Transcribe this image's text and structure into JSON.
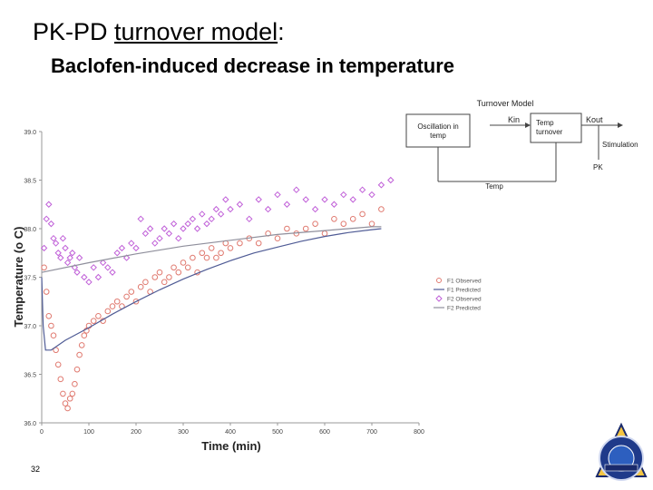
{
  "slide": {
    "title_main": "PK-PD ",
    "title_underlined": "turnover model",
    "title_colon": ":",
    "subtitle": "Baclofen-induced decrease in temperature",
    "page_number": "32"
  },
  "diagram": {
    "title": "Turnover Model",
    "oscillation_label_1": "Oscillation in",
    "oscillation_label_2": "temp",
    "kin": "Kin",
    "kout": "Kout",
    "turnover_label_1": "Temp",
    "turnover_label_2": "turnover",
    "stimulation": "Stimulation",
    "pk": "PK",
    "temp": "Temp"
  },
  "chart_data": {
    "type": "scatter",
    "xlabel": "Time (min)",
    "ylabel": "Temperature (o C)",
    "xlim": [
      0,
      800
    ],
    "ylim": [
      36.0,
      39.0
    ],
    "xticks": [
      "0",
      "100",
      "200",
      "300",
      "400",
      "500",
      "600",
      "700",
      "800"
    ],
    "yticks": [
      "36.0",
      "36.5",
      "37.0",
      "37.5",
      "38.0",
      "38.5",
      "39.0"
    ],
    "grid": false,
    "legend_placement": "right",
    "colors": {
      "f1": "#e07a70",
      "f2": "#c060d8",
      "f1_line": "#4f5b95",
      "f2_line": "#8f8f9c"
    },
    "series": [
      {
        "name": "F1 Observed",
        "kind": "points",
        "x": [
          5,
          10,
          15,
          20,
          25,
          30,
          35,
          40,
          45,
          50,
          55,
          60,
          65,
          70,
          75,
          80,
          85,
          90,
          95,
          100,
          110,
          120,
          130,
          140,
          150,
          160,
          170,
          180,
          190,
          200,
          210,
          220,
          230,
          240,
          250,
          260,
          270,
          280,
          290,
          300,
          310,
          320,
          330,
          340,
          350,
          360,
          370,
          380,
          390,
          400,
          420,
          440,
          460,
          480,
          500,
          520,
          540,
          560,
          580,
          600,
          620,
          640,
          660,
          680,
          700,
          720
        ],
        "y": [
          37.6,
          37.35,
          37.1,
          37.0,
          36.9,
          36.75,
          36.6,
          36.45,
          36.3,
          36.2,
          36.15,
          36.25,
          36.3,
          36.4,
          36.55,
          36.7,
          36.8,
          36.9,
          36.95,
          37.0,
          37.05,
          37.1,
          37.05,
          37.15,
          37.2,
          37.25,
          37.2,
          37.3,
          37.35,
          37.25,
          37.4,
          37.45,
          37.35,
          37.5,
          37.55,
          37.45,
          37.5,
          37.6,
          37.55,
          37.65,
          37.6,
          37.7,
          37.55,
          37.75,
          37.7,
          37.8,
          37.7,
          37.75,
          37.85,
          37.8,
          37.85,
          37.9,
          37.85,
          37.95,
          37.9,
          38.0,
          37.95,
          38.0,
          38.05,
          37.95,
          38.1,
          38.05,
          38.1,
          38.15,
          38.05,
          38.2
        ]
      },
      {
        "name": "F1 Predicted",
        "kind": "line",
        "x": [
          0,
          3,
          8,
          20,
          50,
          100,
          150,
          200,
          250,
          300,
          350,
          400,
          450,
          500,
          550,
          600,
          650,
          700,
          720
        ],
        "y": [
          37.5,
          37.0,
          36.75,
          36.75,
          36.85,
          36.98,
          37.12,
          37.25,
          37.37,
          37.48,
          37.58,
          37.67,
          37.75,
          37.81,
          37.87,
          37.92,
          37.96,
          37.99,
          38.0
        ]
      },
      {
        "name": "F2 Observed",
        "kind": "points",
        "x": [
          5,
          10,
          15,
          20,
          25,
          30,
          35,
          40,
          45,
          50,
          55,
          60,
          65,
          70,
          75,
          80,
          90,
          100,
          110,
          120,
          130,
          140,
          150,
          160,
          170,
          180,
          190,
          200,
          210,
          220,
          230,
          240,
          250,
          260,
          270,
          280,
          290,
          300,
          310,
          320,
          330,
          340,
          350,
          360,
          370,
          380,
          390,
          400,
          420,
          440,
          460,
          480,
          500,
          520,
          540,
          560,
          580,
          600,
          620,
          640,
          660,
          680,
          700,
          720,
          740
        ],
        "y": [
          37.8,
          38.1,
          38.25,
          38.05,
          37.9,
          37.85,
          37.75,
          37.7,
          37.9,
          37.8,
          37.65,
          37.7,
          37.75,
          37.6,
          37.55,
          37.7,
          37.5,
          37.45,
          37.6,
          37.5,
          37.65,
          37.6,
          37.55,
          37.75,
          37.8,
          37.7,
          37.85,
          37.8,
          38.1,
          37.95,
          38.0,
          37.85,
          37.9,
          38.0,
          37.95,
          38.05,
          37.9,
          38.0,
          38.05,
          38.1,
          38.0,
          38.15,
          38.05,
          38.1,
          38.2,
          38.15,
          38.3,
          38.2,
          38.25,
          38.1,
          38.3,
          38.2,
          38.35,
          38.25,
          38.4,
          38.3,
          38.2,
          38.3,
          38.25,
          38.35,
          38.3,
          38.4,
          38.35,
          38.45,
          38.5
        ]
      },
      {
        "name": "F2 Predicted",
        "kind": "line",
        "x": [
          0,
          100,
          200,
          300,
          400,
          500,
          600,
          700,
          720
        ],
        "y": [
          37.55,
          37.65,
          37.74,
          37.82,
          37.88,
          37.94,
          37.98,
          38.02,
          38.02
        ]
      }
    ]
  }
}
